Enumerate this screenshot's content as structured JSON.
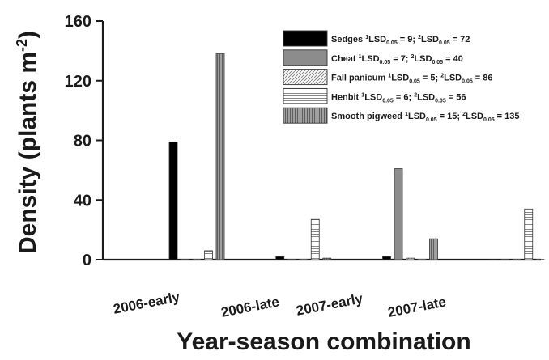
{
  "chart_data": {
    "type": "bar",
    "xlabel": "Year-season combination",
    "ylabel": "Density (plants m",
    "ylabel_sup": "-2",
    "ylabel_close": ")",
    "ylim": [
      0,
      160
    ],
    "yticks": [
      0,
      40,
      80,
      120,
      160
    ],
    "categories": [
      "2006-early",
      "2006-late",
      "2007-early",
      "2007-late"
    ],
    "legend_position": "top-right",
    "series": [
      {
        "name": "Sedges",
        "lsd1": "9",
        "lsd2": "72",
        "values": [
          79,
          2,
          2,
          0
        ],
        "fill": "#000000",
        "pattern": "solid"
      },
      {
        "name": "Cheat",
        "lsd1": "7",
        "lsd2": "40",
        "values": [
          0,
          0,
          61,
          0
        ],
        "fill": "#8c8c8c",
        "pattern": "solid"
      },
      {
        "name": "Fall panicum",
        "lsd1": "5",
        "lsd2": "86",
        "values": [
          0,
          0,
          1,
          0
        ],
        "fill": "#f5f5f5",
        "pattern": "diagonal"
      },
      {
        "name": "Henbit",
        "lsd1": "6",
        "lsd2": "56",
        "values": [
          6,
          27,
          0,
          34
        ],
        "fill": "#ffffff",
        "pattern": "horizontal"
      },
      {
        "name": "Smooth pigweed",
        "lsd1": "15",
        "lsd2": "135",
        "values": [
          138,
          1,
          14,
          0
        ],
        "fill": "#8a8a8a",
        "pattern": "vertical"
      }
    ],
    "lsd_prefix_1": "1",
    "lsd_prefix_2": "2",
    "lsd_label": "LSD",
    "lsd_sub": "0.05"
  }
}
